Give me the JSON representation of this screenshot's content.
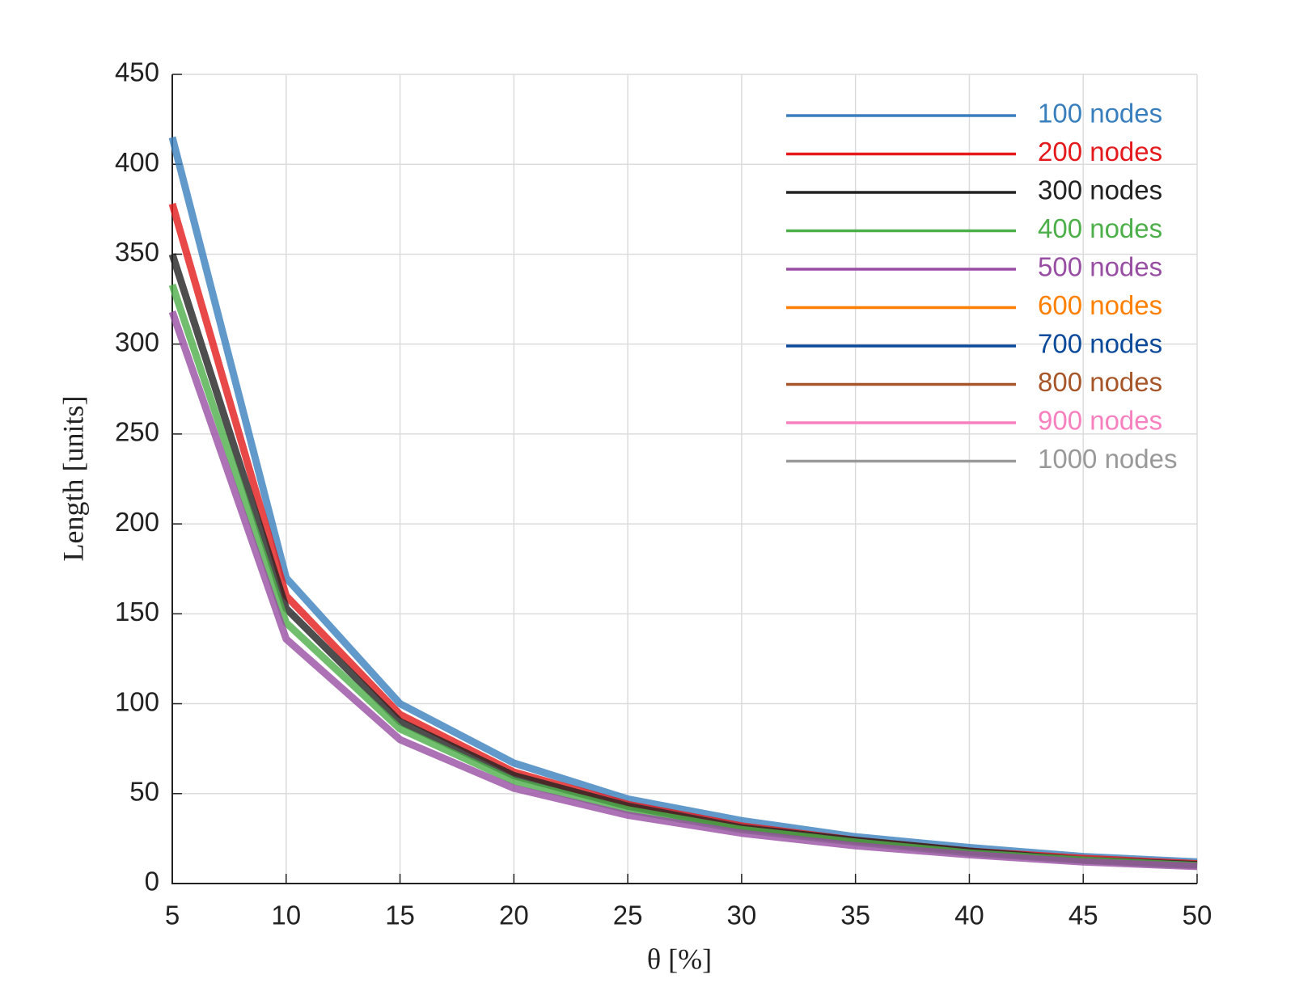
{
  "chart_data": {
    "type": "line",
    "xlabel": "θ [%]",
    "ylabel": "Length [units]",
    "x": [
      5,
      10,
      15,
      20,
      25,
      30,
      35,
      40,
      45,
      50
    ],
    "xlim": [
      5,
      50
    ],
    "xticks": [
      5,
      10,
      15,
      20,
      25,
      30,
      35,
      40,
      45,
      50
    ],
    "ylim": [
      0,
      450
    ],
    "yticks": [
      0,
      50,
      100,
      150,
      200,
      250,
      300,
      350,
      400,
      450
    ],
    "grid": true,
    "legend": "upper right",
    "series": [
      {
        "name": "100 nodes",
        "color": "#3a7fbd",
        "values": [
          415,
          170,
          100,
          67,
          47,
          35,
          26,
          20,
          15,
          12
        ]
      },
      {
        "name": "200 nodes",
        "color": "#e41a1c",
        "values": [
          378,
          160,
          94,
          62,
          44,
          32,
          24,
          18,
          14,
          11
        ]
      },
      {
        "name": "300 nodes",
        "color": "#222222",
        "values": [
          350,
          153,
          90,
          60,
          43,
          31,
          24,
          18,
          13,
          10.5
        ]
      },
      {
        "name": "400 nodes",
        "color": "#4daf4a",
        "values": [
          333,
          145,
          86,
          57,
          41,
          30,
          23,
          17,
          13,
          10
        ]
      },
      {
        "name": "500 nodes",
        "color": "#984ea3",
        "values": [
          318,
          136,
          80,
          53,
          38,
          28,
          21,
          16,
          12,
          9.5
        ]
      },
      {
        "name": "600 nodes",
        "color": "#ff7f00",
        "values": [
          null,
          null,
          null,
          null,
          null,
          null,
          null,
          null,
          null,
          null
        ]
      },
      {
        "name": "700 nodes",
        "color": "#0b4a9a",
        "values": [
          null,
          null,
          null,
          null,
          null,
          null,
          null,
          null,
          null,
          null
        ]
      },
      {
        "name": "800 nodes",
        "color": "#a65628",
        "values": [
          null,
          null,
          null,
          null,
          null,
          null,
          null,
          null,
          null,
          null
        ]
      },
      {
        "name": "900 nodes",
        "color": "#f781bf",
        "values": [
          null,
          null,
          null,
          null,
          null,
          null,
          null,
          null,
          null,
          null
        ]
      },
      {
        "name": "1000 nodes",
        "color": "#999999",
        "values": [
          null,
          null,
          null,
          null,
          null,
          null,
          null,
          null,
          null,
          null
        ]
      }
    ]
  }
}
